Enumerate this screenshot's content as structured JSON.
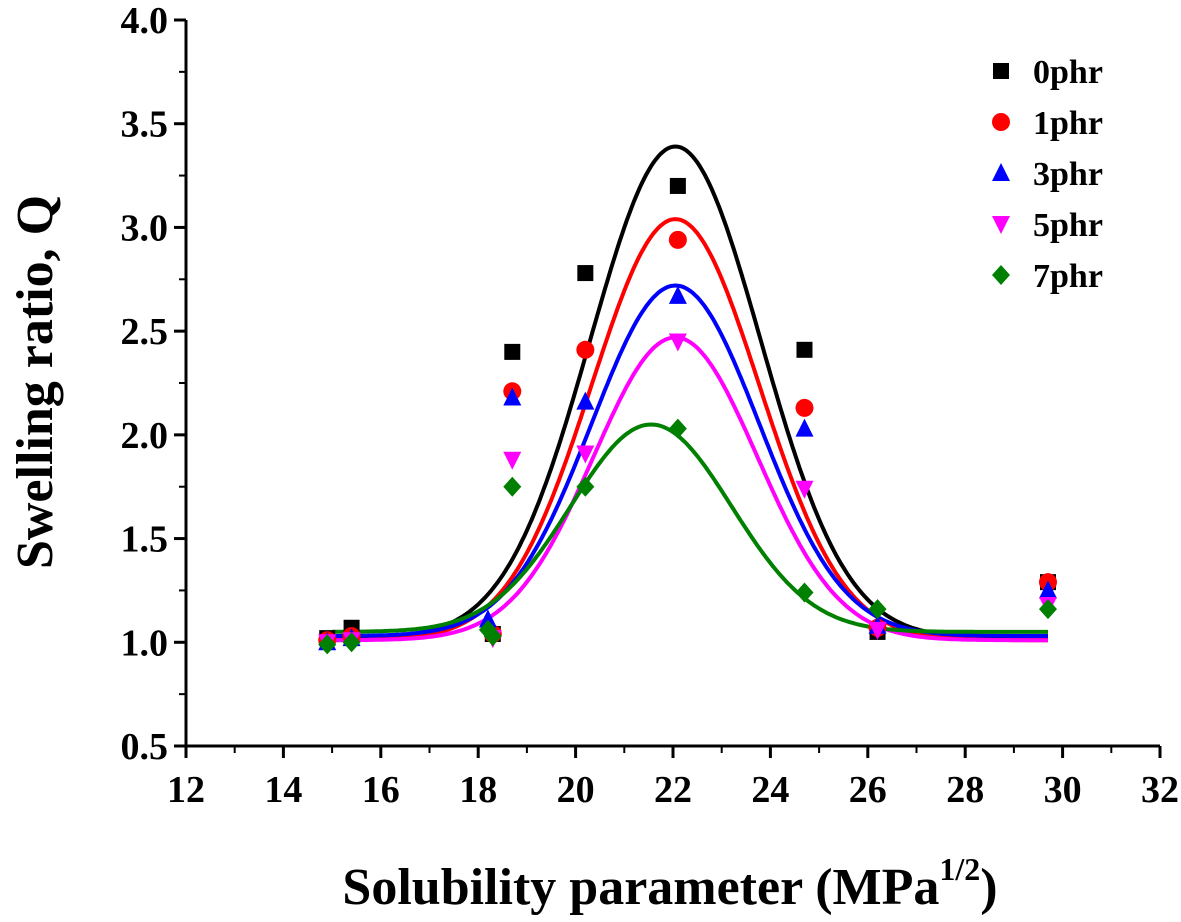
{
  "chart_data": {
    "type": "scatter",
    "xlabel_main": "Solubility parameter (MPa",
    "xlabel_sup": "1/2",
    "xlabel_close": ")",
    "ylabel": "Swelling ratio, Q",
    "xlim": [
      12,
      32
    ],
    "ylim": [
      0.5,
      4.0
    ],
    "xticks": [
      "12",
      "14",
      "16",
      "18",
      "20",
      "22",
      "24",
      "26",
      "28",
      "30",
      "32"
    ],
    "yticks": [
      "0.5",
      "1.0",
      "1.5",
      "2.0",
      "2.5",
      "3.0",
      "3.5",
      "4.0"
    ],
    "grid": false,
    "legend_position": "top-right",
    "series": [
      {
        "name": "0phr",
        "marker": "square",
        "color": "#000000",
        "points": [
          [
            14.9,
            1.02
          ],
          [
            15.4,
            1.07
          ],
          [
            18.3,
            1.04
          ],
          [
            18.7,
            2.4
          ],
          [
            20.2,
            2.78
          ],
          [
            22.1,
            3.2
          ],
          [
            24.7,
            2.41
          ],
          [
            26.2,
            1.05
          ],
          [
            29.7,
            1.29
          ]
        ],
        "fit": {
          "base": 1.02,
          "amp": 2.37,
          "center": 22.05,
          "width": 1.75
        }
      },
      {
        "name": "1phr",
        "marker": "circle",
        "color": "#ff0000",
        "points": [
          [
            14.9,
            1.01
          ],
          [
            15.4,
            1.03
          ],
          [
            18.3,
            1.04
          ],
          [
            18.7,
            2.21
          ],
          [
            20.2,
            2.41
          ],
          [
            22.1,
            2.94
          ],
          [
            24.7,
            2.13
          ],
          [
            26.2,
            1.07
          ],
          [
            29.7,
            1.29
          ]
        ],
        "fit": {
          "base": 1.01,
          "amp": 2.03,
          "center": 22.05,
          "width": 1.72
        }
      },
      {
        "name": "3phr",
        "marker": "triangle-up",
        "color": "#0000ff",
        "points": [
          [
            14.9,
            1.0
          ],
          [
            15.4,
            1.02
          ],
          [
            18.2,
            1.11
          ],
          [
            18.7,
            2.18
          ],
          [
            20.2,
            2.16
          ],
          [
            22.1,
            2.67
          ],
          [
            24.7,
            2.03
          ],
          [
            26.2,
            1.08
          ],
          [
            29.7,
            1.25
          ]
        ],
        "fit": {
          "base": 1.03,
          "amp": 1.69,
          "center": 22.05,
          "width": 1.72
        }
      },
      {
        "name": "5phr",
        "marker": "triangle-down",
        "color": "#ff00ff",
        "points": [
          [
            14.9,
            1.0
          ],
          [
            15.4,
            1.01
          ],
          [
            18.3,
            1.02
          ],
          [
            18.7,
            1.88
          ],
          [
            20.2,
            1.91
          ],
          [
            22.1,
            2.45
          ],
          [
            24.7,
            1.74
          ],
          [
            26.2,
            1.06
          ],
          [
            29.7,
            1.18
          ]
        ],
        "fit": {
          "base": 1.01,
          "amp": 1.46,
          "center": 22.05,
          "width": 1.68
        }
      },
      {
        "name": "7phr",
        "marker": "diamond",
        "color": "#008000",
        "points": [
          [
            14.9,
            0.99
          ],
          [
            15.4,
            1.0
          ],
          [
            18.2,
            1.06
          ],
          [
            18.3,
            1.03
          ],
          [
            18.7,
            1.75
          ],
          [
            20.2,
            1.75
          ],
          [
            22.1,
            2.03
          ],
          [
            24.7,
            1.24
          ],
          [
            26.2,
            1.16
          ],
          [
            29.7,
            1.16
          ]
        ],
        "fit": {
          "base": 1.05,
          "amp": 1.0,
          "center": 21.55,
          "width": 1.65
        }
      }
    ]
  }
}
